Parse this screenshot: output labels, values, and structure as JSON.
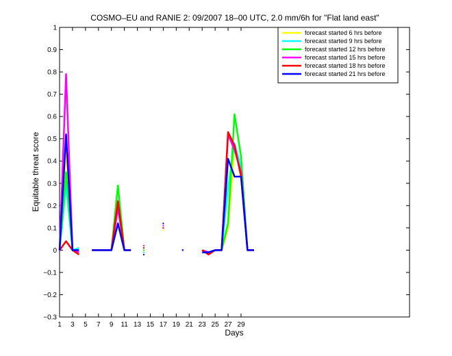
{
  "chart_data": {
    "type": "line",
    "title": "COSMO–EU and RANIE 2: 09/2007 18–00 UTC, 2.0 mm/6h for \"Flat land east\"",
    "xlabel": "Days",
    "ylabel": "Equitable threat score",
    "xlim": [
      1,
      55
    ],
    "ylim": [
      -0.3,
      1
    ],
    "xticks": [
      1,
      3,
      5,
      7,
      9,
      11,
      13,
      15,
      17,
      19,
      21,
      23,
      25,
      27,
      29
    ],
    "yticks": [
      -0.3,
      -0.2,
      -0.1,
      0,
      0.1,
      0.2,
      0.3,
      0.4,
      0.5,
      0.6,
      0.7,
      0.8,
      0.9,
      1
    ],
    "ytick_labels": [
      "−0.3",
      "−0.2",
      "−0.1",
      "0",
      "0.1",
      "0.2",
      "0.3",
      "0.4",
      "0.5",
      "0.6",
      "0.7",
      "0.8",
      "0.9",
      "1"
    ],
    "grid": false,
    "legend_position": "top-right",
    "series": [
      {
        "name": "forecast started 6 hrs before",
        "color": "#ffff00",
        "x": [
          1,
          2,
          3,
          4,
          6,
          7,
          8,
          9,
          10,
          11,
          12,
          14,
          17,
          20,
          23,
          24,
          25,
          26,
          27,
          28,
          29,
          30,
          31
        ],
        "y": [
          0,
          0.45,
          0,
          -0.01,
          0,
          0,
          0,
          0,
          0.2,
          0,
          0,
          0,
          0.09,
          0,
          0,
          -0.01,
          0,
          0,
          0.1,
          0.46,
          0.35,
          0,
          0
        ]
      },
      {
        "name": "forecast started 9 hrs before",
        "color": "#00ffff",
        "x": [
          1,
          2,
          3,
          4,
          6,
          7,
          8,
          9,
          10,
          11,
          12,
          14,
          17,
          20,
          23,
          24,
          25,
          26,
          27,
          28,
          29,
          30,
          31
        ],
        "y": [
          0,
          0.29,
          0,
          0.01,
          0,
          0,
          0,
          0,
          0.12,
          0,
          0,
          -0.01,
          0.12,
          0,
          0,
          -0.01,
          0,
          0,
          0.28,
          0.48,
          0.37,
          0,
          0
        ]
      },
      {
        "name": "forecast started 12 hrs before",
        "color": "#00ff00",
        "x": [
          1,
          2,
          3,
          4,
          6,
          7,
          8,
          9,
          10,
          11,
          12,
          14,
          17,
          20,
          23,
          24,
          25,
          26,
          27,
          28,
          29,
          30,
          31
        ],
        "y": [
          0,
          0.35,
          0,
          -0.01,
          0,
          0,
          0,
          0,
          0.29,
          0,
          0,
          0,
          0.1,
          0,
          0,
          -0.01,
          0,
          0,
          0.12,
          0.61,
          0.42,
          0,
          0
        ]
      },
      {
        "name": "forecast started 15 hrs before",
        "color": "#ff00ff",
        "x": [
          1,
          2,
          3,
          4,
          6,
          7,
          8,
          9,
          10,
          11,
          12,
          14,
          17,
          20,
          23,
          24,
          25,
          26,
          27,
          28,
          29,
          30,
          31
        ],
        "y": [
          0,
          0.79,
          0,
          -0.01,
          0,
          0,
          0,
          0,
          0.19,
          0,
          0,
          0.02,
          0.11,
          0,
          0,
          -0.01,
          0,
          0,
          0.52,
          0.45,
          0.35,
          0,
          0
        ]
      },
      {
        "name": "forecast started 18 hrs before",
        "color": "#ff0000",
        "x": [
          1,
          2,
          3,
          4,
          6,
          7,
          8,
          9,
          10,
          11,
          12,
          14,
          17,
          20,
          23,
          24,
          25,
          26,
          27,
          28,
          29,
          30,
          31
        ],
        "y": [
          0,
          0.04,
          0,
          -0.02,
          0,
          0,
          0,
          0,
          0.22,
          0,
          0,
          0.01,
          0.1,
          0,
          0,
          -0.02,
          0,
          0,
          0.53,
          0.47,
          0.33,
          0,
          0
        ]
      },
      {
        "name": "forecast started 21 hrs before",
        "color": "#0000ff",
        "x": [
          1,
          2,
          3,
          4,
          6,
          7,
          8,
          9,
          10,
          11,
          12,
          14,
          17,
          20,
          23,
          24,
          25,
          26,
          27,
          28,
          29,
          30,
          31
        ],
        "y": [
          0,
          0.52,
          0,
          0,
          0,
          0,
          0,
          0,
          0.12,
          0,
          0,
          -0.02,
          0.12,
          0,
          -0.01,
          -0.01,
          0,
          0,
          0.41,
          0.33,
          0.33,
          0,
          0
        ]
      }
    ]
  }
}
